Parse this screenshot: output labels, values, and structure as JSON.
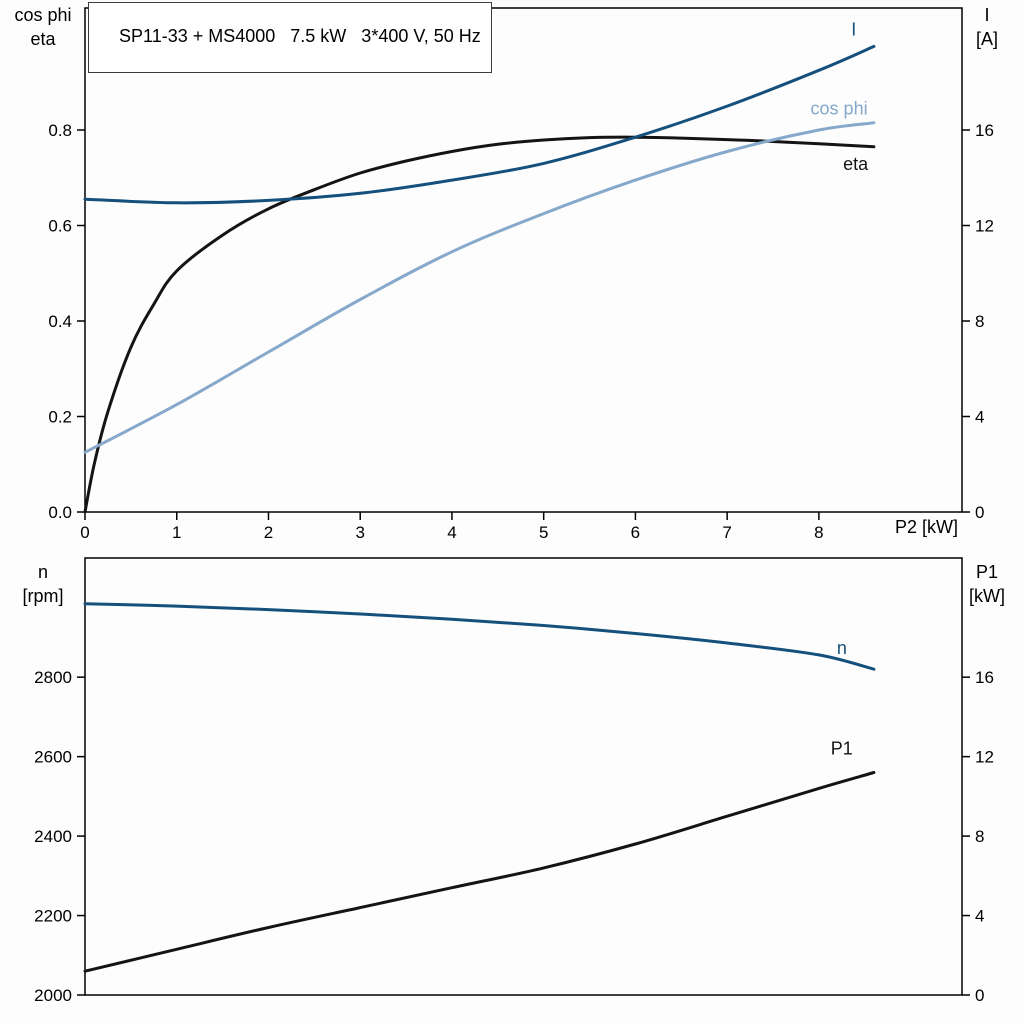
{
  "colors": {
    "dark_blue": "#15507d",
    "light_blue": "#85a8cb",
    "black": "#141414",
    "border": "#000000",
    "background": "#fdfdfd"
  },
  "chart_data": [
    {
      "type": "line",
      "title": "SP11-33 + MS4000   7.5 kW   3*400 V, 50 Hz",
      "x_label": "P2 [kW]",
      "xlim": [
        0,
        9.56
      ],
      "x_ticks": [
        {
          "v": 0,
          "label": "0"
        },
        {
          "v": 1,
          "label": "1"
        },
        {
          "v": 2,
          "label": "2"
        },
        {
          "v": 3,
          "label": "3"
        },
        {
          "v": 4,
          "label": "4"
        },
        {
          "v": 5,
          "label": "5"
        },
        {
          "v": 6,
          "label": "6"
        },
        {
          "v": 7,
          "label": "7"
        },
        {
          "v": 8,
          "label": "8"
        }
      ],
      "left_axis": {
        "header1": "cos phi",
        "header2": "eta",
        "ylim": [
          0,
          1.0555
        ],
        "ticks": [
          {
            "v": 0.0,
            "label": "0.0"
          },
          {
            "v": 0.2,
            "label": "0.2"
          },
          {
            "v": 0.4,
            "label": "0.4"
          },
          {
            "v": 0.6,
            "label": "0.6"
          },
          {
            "v": 0.8,
            "label": "0.8"
          }
        ]
      },
      "right_axis": {
        "header1": "I",
        "header2": "[A]",
        "ylim": [
          0,
          21.11
        ],
        "ticks": [
          {
            "v": 0,
            "label": "0"
          },
          {
            "v": 4,
            "label": "4"
          },
          {
            "v": 8,
            "label": "8"
          },
          {
            "v": 12,
            "label": "12"
          },
          {
            "v": 16,
            "label": "16"
          }
        ]
      },
      "series": [
        {
          "name": "eta",
          "axis": "left",
          "color": "black",
          "x": [
            0,
            0.1,
            0.25,
            0.5,
            0.75,
            1,
            1.5,
            2,
            2.5,
            3,
            3.5,
            4,
            4.5,
            5,
            5.5,
            6,
            6.5,
            7,
            7.5,
            8,
            8.6
          ],
          "y": [
            0,
            0.1,
            0.21,
            0.345,
            0.435,
            0.505,
            0.58,
            0.635,
            0.675,
            0.71,
            0.735,
            0.755,
            0.77,
            0.779,
            0.784,
            0.785,
            0.783,
            0.78,
            0.776,
            0.771,
            0.765
          ],
          "label": {
            "text": "eta",
            "x": 8.4,
            "y": 0.716
          }
        },
        {
          "name": "cos_phi",
          "axis": "left",
          "color": "light_blue",
          "x": [
            0,
            1,
            2,
            3,
            4,
            5,
            6,
            7,
            8,
            8.6
          ],
          "y": [
            0.125,
            0.225,
            0.335,
            0.445,
            0.545,
            0.625,
            0.695,
            0.755,
            0.8,
            0.815
          ],
          "label": {
            "text": "cos phi",
            "x": 8.22,
            "y": 0.832
          }
        },
        {
          "name": "current",
          "axis": "right",
          "color": "dark_blue",
          "x": [
            0,
            1,
            2,
            3,
            4,
            5,
            6,
            7,
            8,
            8.6
          ],
          "y": [
            13.1,
            12.95,
            13.05,
            13.35,
            13.9,
            14.6,
            15.7,
            17.0,
            18.5,
            19.5
          ],
          "label": {
            "text": "I",
            "x": 8.38,
            "y": 19.95
          }
        }
      ]
    },
    {
      "type": "line",
      "title": "",
      "x_label": "",
      "xlim": [
        0,
        9.56
      ],
      "x_ticks": [],
      "left_axis": {
        "header1": "n",
        "header2": "[rpm]",
        "ylim": [
          2000,
          3100
        ],
        "ticks": [
          {
            "v": 2000,
            "label": "2000"
          },
          {
            "v": 2200,
            "label": "2200"
          },
          {
            "v": 2400,
            "label": "2400"
          },
          {
            "v": 2600,
            "label": "2600"
          },
          {
            "v": 2800,
            "label": "2800"
          }
        ]
      },
      "right_axis": {
        "header1": "P1",
        "header2": "[kW]",
        "ylim": [
          0,
          22
        ],
        "ticks": [
          {
            "v": 0,
            "label": "0"
          },
          {
            "v": 4,
            "label": "4"
          },
          {
            "v": 8,
            "label": "8"
          },
          {
            "v": 12,
            "label": "12"
          },
          {
            "v": 16,
            "label": "16"
          }
        ]
      },
      "series": [
        {
          "name": "speed",
          "axis": "left",
          "color": "dark_blue",
          "x": [
            0,
            1,
            2,
            3,
            4,
            5,
            6,
            7,
            8,
            8.6
          ],
          "y": [
            2985,
            2979,
            2970,
            2959,
            2946,
            2930,
            2910,
            2886,
            2856,
            2820
          ],
          "label": {
            "text": "n",
            "x": 8.25,
            "y": 2858
          }
        },
        {
          "name": "p1_power",
          "axis": "right",
          "color": "black",
          "x": [
            0,
            1,
            2,
            3,
            4,
            5,
            6,
            7,
            8,
            8.6
          ],
          "y": [
            1.2,
            2.3,
            3.4,
            4.4,
            5.4,
            6.4,
            7.6,
            9.0,
            10.4,
            11.2
          ],
          "label": {
            "text": "P1",
            "x": 8.25,
            "y": 12.1
          }
        }
      ]
    }
  ]
}
